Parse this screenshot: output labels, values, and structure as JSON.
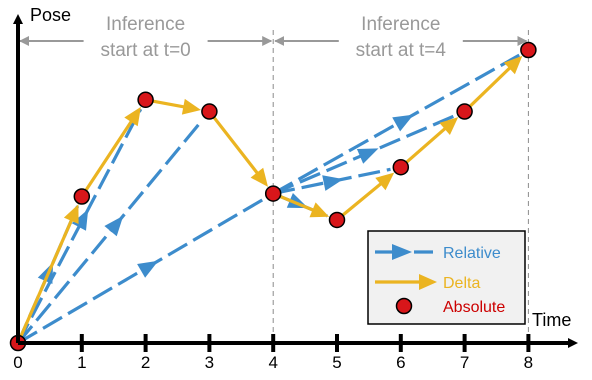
{
  "diagram": {
    "axes": {
      "y_label": "Pose",
      "x_label": "Time",
      "x_ticks": [
        "0",
        "1",
        "2",
        "3",
        "4",
        "5",
        "6",
        "7",
        "8"
      ]
    },
    "annotations": [
      {
        "line1": "Inference",
        "line2": "start at t=0",
        "from_t": 0,
        "to_t": 4
      },
      {
        "line1": "Inference",
        "line2": "start at t=4",
        "from_t": 4,
        "to_t": 8
      }
    ],
    "points": [
      {
        "t": 0,
        "pose": 0.0
      },
      {
        "t": 1,
        "pose": 0.5
      },
      {
        "t": 2,
        "pose": 0.83
      },
      {
        "t": 3,
        "pose": 0.79
      },
      {
        "t": 4,
        "pose": 0.51
      },
      {
        "t": 5,
        "pose": 0.42
      },
      {
        "t": 6,
        "pose": 0.6
      },
      {
        "t": 7,
        "pose": 0.79
      },
      {
        "t": 8,
        "pose": 1.0
      }
    ],
    "relative_arrows": [
      {
        "from_t": 0,
        "to_t": 1
      },
      {
        "from_t": 0,
        "to_t": 2
      },
      {
        "from_t": 0,
        "to_t": 3
      },
      {
        "from_t": 0,
        "to_t": 4
      },
      {
        "from_t": 4,
        "to_t": 5
      },
      {
        "from_t": 4,
        "to_t": 6
      },
      {
        "from_t": 4,
        "to_t": 7
      },
      {
        "from_t": 4,
        "to_t": 8
      }
    ],
    "legend": [
      {
        "label": "Relative",
        "kind": "relative"
      },
      {
        "label": "Delta",
        "kind": "delta"
      },
      {
        "label": "Absolute",
        "kind": "absolute"
      }
    ],
    "colors": {
      "relative": "#3d8ccc",
      "delta": "#ebb421",
      "absolute": "#d8161a",
      "absolute_label": "#cc0000",
      "axis": "#000000",
      "annotation": "#999999",
      "legend_bg": "#f1f1f1"
    }
  }
}
